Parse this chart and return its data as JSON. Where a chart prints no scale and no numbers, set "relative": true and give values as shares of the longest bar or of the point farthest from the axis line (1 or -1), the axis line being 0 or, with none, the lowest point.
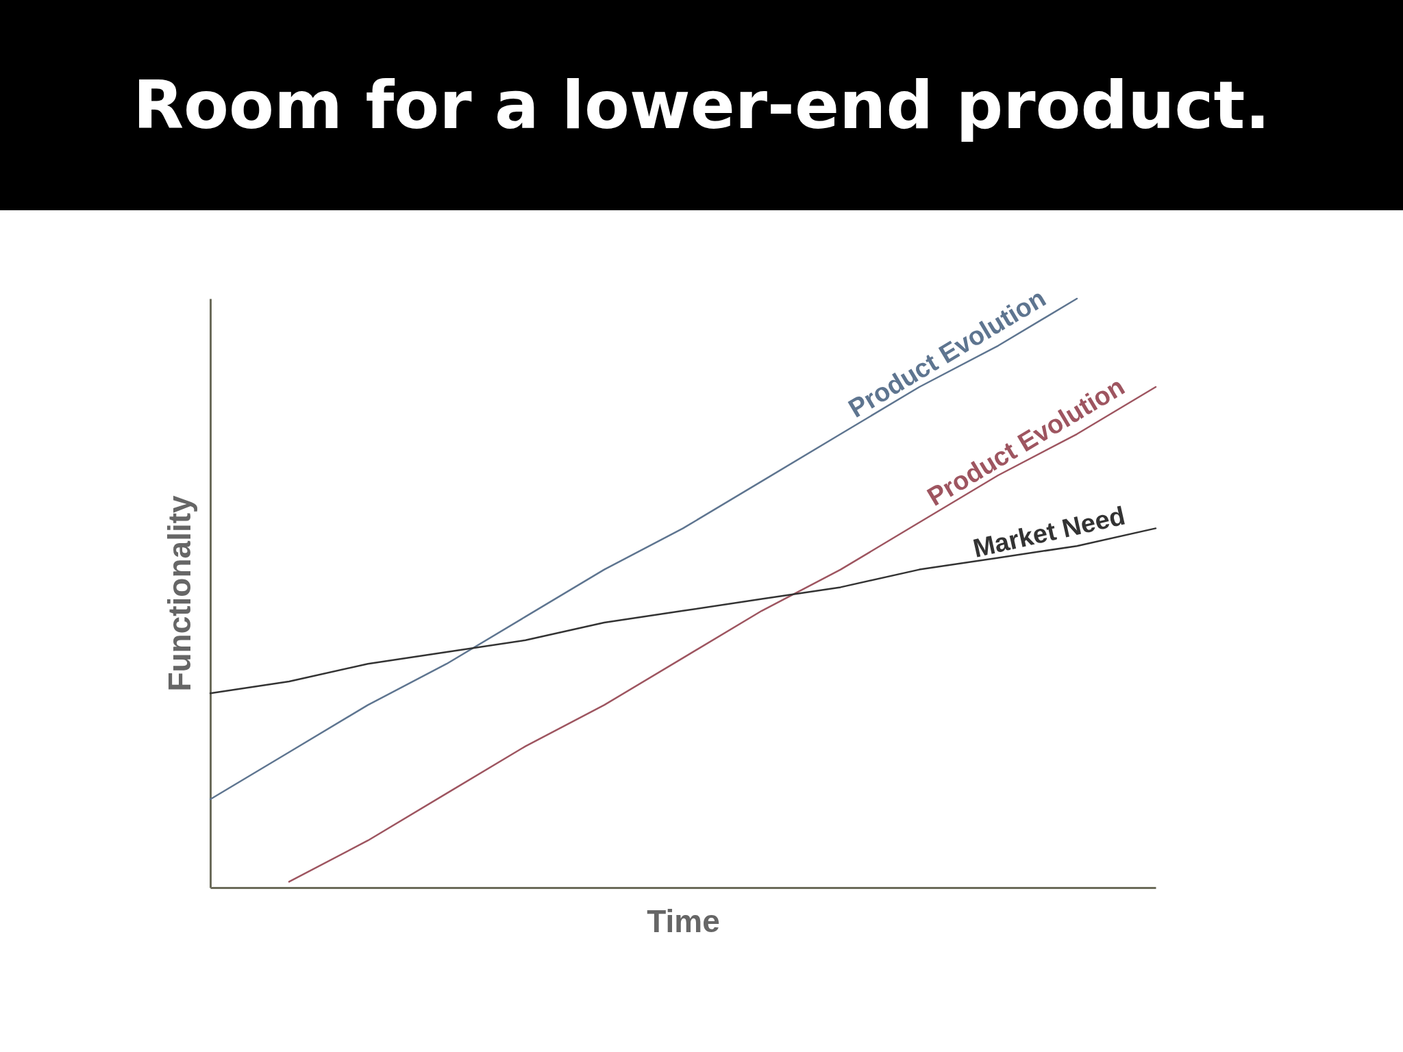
{
  "chart_data": {
    "type": "line",
    "title": "Room for a lower-end product.",
    "xlabel": "Time",
    "ylabel": "Functionality",
    "relative": true,
    "marker": "none",
    "grid": false,
    "legend": false,
    "categories": [
      null,
      null,
      null,
      null,
      null,
      null,
      null,
      null,
      null,
      null,
      null,
      null,
      null
    ],
    "series": [
      {
        "name": "Product Evolution",
        "color": "#5e7590",
        "values": [
          0.15,
          0.23,
          0.31,
          0.38,
          0.46,
          0.54,
          0.61,
          0.69,
          0.77,
          0.85,
          0.92,
          1.0,
          null
        ]
      },
      {
        "name": "Product Evolution",
        "color": "#9e5560",
        "values": [
          null,
          0.01,
          0.08,
          0.16,
          0.24,
          0.31,
          0.39,
          0.47,
          0.54,
          0.62,
          0.7,
          0.77,
          0.85
        ]
      },
      {
        "name": "Market Need",
        "color": "#333333",
        "values": [
          0.33,
          0.35,
          0.38,
          0.4,
          0.42,
          0.45,
          0.47,
          0.49,
          0.51,
          0.54,
          0.56,
          0.58,
          0.61
        ]
      }
    ]
  }
}
